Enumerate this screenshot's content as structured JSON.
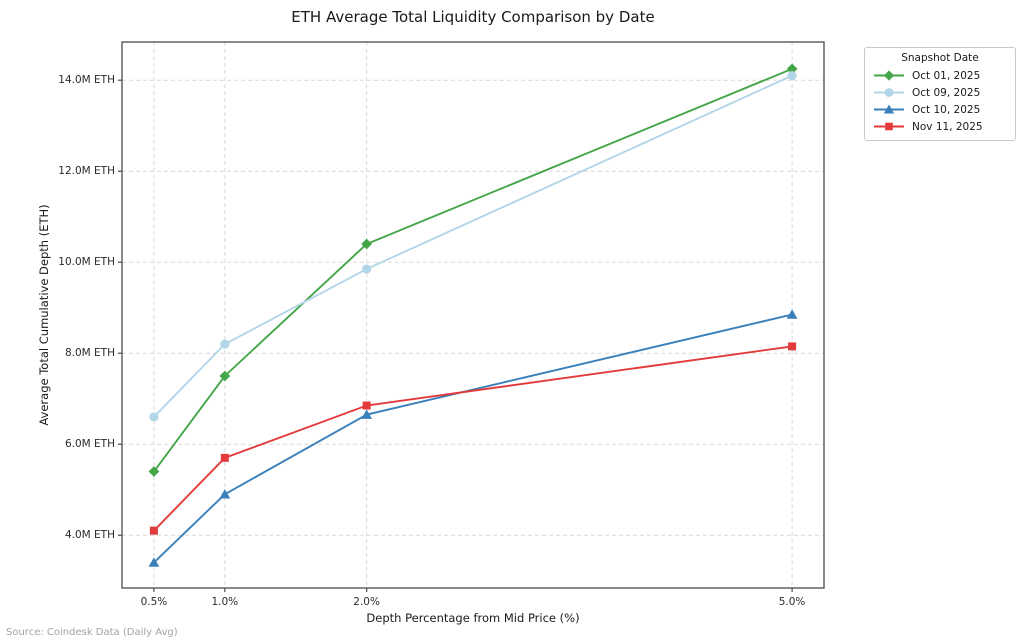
{
  "chart_data": {
    "type": "line",
    "title": "ETH Average Total Liquidity Comparison by Date",
    "xlabel": "Depth Percentage from Mid Price (%)",
    "ylabel": "Average Total Cumulative Depth (ETH)",
    "x": [
      0.5,
      1.0,
      2.0,
      5.0
    ],
    "x_tick_labels": [
      "0.5%",
      "1.0%",
      "2.0%",
      "5.0%"
    ],
    "y_ticks": [
      4.0,
      6.0,
      8.0,
      10.0,
      12.0,
      14.0
    ],
    "y_tick_labels": [
      "4.0M ETH",
      "6.0M ETH",
      "8.0M ETH",
      "10.0M ETH",
      "12.0M ETH",
      "14.0M ETH"
    ],
    "y_unit": "M ETH",
    "xlim": [
      0.275,
      5.225
    ],
    "ylim": [
      2.84,
      14.84
    ],
    "grid": true,
    "grid_style": "dashed",
    "legend_title": "Snapshot Date",
    "legend_position": "outside-upper-right",
    "series": [
      {
        "name": "Oct 01, 2025",
        "color": "#45a649",
        "marker": "diamond",
        "values": [
          5.4,
          7.5,
          10.4,
          14.25
        ]
      },
      {
        "name": "Oct 09, 2025",
        "color": "#b3d5e8",
        "marker": "circle",
        "values": [
          6.6,
          8.2,
          9.85,
          14.1
        ]
      },
      {
        "name": "Oct 10, 2025",
        "color": "#3a80ba",
        "marker": "triangle",
        "values": [
          3.4,
          4.9,
          6.65,
          8.85
        ]
      },
      {
        "name": "Nov 11, 2025",
        "color": "#e33b3b",
        "marker": "square",
        "values": [
          4.1,
          5.7,
          6.85,
          8.15
        ]
      }
    ],
    "source_note": "Source: Coindesk Data (Daily Avg)",
    "colors": {
      "spine": "#4a4a4a",
      "grid": "#d9d9d9",
      "background": "#ffffff",
      "tick_text": "#2b2b2b"
    }
  }
}
